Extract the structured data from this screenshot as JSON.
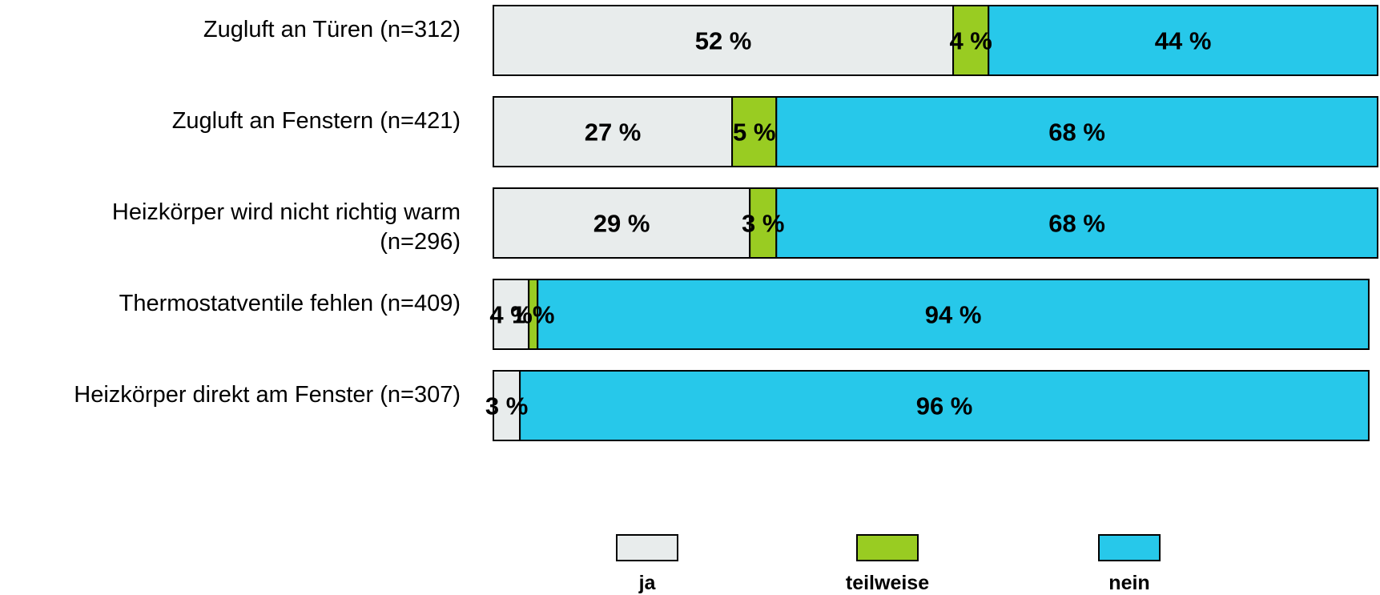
{
  "chart_data": {
    "type": "bar",
    "orientation": "horizontal",
    "stacked": true,
    "unit_suffix": " %",
    "categories": [
      [
        "Zugluft an Türen (n=312)"
      ],
      [
        "Zugluft an Fenstern (n=421)"
      ],
      [
        "Heizkörper wird nicht richtig warm",
        "(n=296)"
      ],
      [
        "Thermostatventile fehlen (n=409)"
      ],
      [
        "Heizkörper direkt am Fenster (n=307)"
      ]
    ],
    "series": [
      {
        "name": "ja",
        "color": "#E8ECEC",
        "values": [
          52,
          27,
          29,
          4,
          3
        ],
        "labels": [
          "52 %",
          "27 %",
          "29 %",
          "4 %",
          "3 %"
        ]
      },
      {
        "name": "teilweise",
        "color": "#99CC22",
        "values": [
          4,
          5,
          3,
          1,
          0
        ],
        "labels": [
          "4 %",
          "5 %",
          "3 %",
          "1 %",
          ""
        ]
      },
      {
        "name": "nein",
        "color": "#27C8EA",
        "values": [
          44,
          68,
          68,
          94,
          96
        ],
        "labels": [
          "44 %",
          "68 %",
          "68 %",
          "94 %",
          "96 %"
        ]
      }
    ],
    "xlim": [
      0,
      100
    ],
    "grid": false,
    "legend_position": "bottom"
  }
}
